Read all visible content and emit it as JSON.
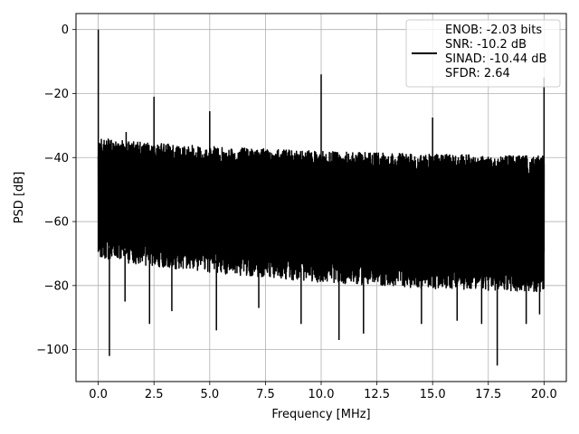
{
  "chart_data": {
    "type": "line",
    "xlabel": "Frequency [MHz]",
    "ylabel": "PSD [dB]",
    "xlim": [
      -1.0,
      21.0
    ],
    "ylim": [
      -110,
      5
    ],
    "x_ticks": [
      0.0,
      2.5,
      5.0,
      7.5,
      10.0,
      12.5,
      15.0,
      17.5,
      20.0
    ],
    "x_tick_labels": [
      "0.0",
      "2.5",
      "5.0",
      "7.5",
      "10.0",
      "12.5",
      "15.0",
      "17.5",
      "20.0"
    ],
    "y_ticks": [
      0,
      -20,
      -40,
      -60,
      -80,
      -100
    ],
    "y_tick_labels": [
      "0",
      "−20",
      "−40",
      "−60",
      "−80",
      "−100"
    ],
    "grid": true,
    "legend_location": "top-right",
    "legend_lines": [
      "ENOB: -2.03 bits",
      "SNR: -10.2 dB",
      "SINAD: -10.44 dB",
      "SFDR: 2.64"
    ],
    "line_color": "#000000",
    "series": [
      {
        "noise_band": {
          "x_range": [
            0.0,
            20.0
          ],
          "upper_envelope": [
            [
              0.1,
              -34
            ],
            [
              2.5,
              -35.5
            ],
            [
              5.0,
              -36.5
            ],
            [
              10.0,
              -38
            ],
            [
              15.0,
              -39
            ],
            [
              20.0,
              -39.5
            ]
          ],
          "lower_envelope": [
            [
              0.1,
              -72
            ],
            [
              5.0,
              -76
            ],
            [
              10.0,
              -79
            ],
            [
              15.0,
              -81
            ],
            [
              20.0,
              -82
            ]
          ],
          "deep_dips": [
            [
              0.5,
              -102
            ],
            [
              1.2,
              -85
            ],
            [
              2.3,
              -92
            ],
            [
              3.3,
              -88
            ],
            [
              5.3,
              -94
            ],
            [
              7.2,
              -87
            ],
            [
              9.1,
              -92
            ],
            [
              10.8,
              -97
            ],
            [
              11.9,
              -95
            ],
            [
              14.5,
              -92
            ],
            [
              16.1,
              -91
            ],
            [
              17.2,
              -92
            ],
            [
              17.9,
              -105
            ],
            [
              19.2,
              -92
            ],
            [
              19.8,
              -89
            ]
          ]
        },
        "spikes": [
          {
            "x": 0.0,
            "y": 0
          },
          {
            "x": 1.25,
            "y": -32
          },
          {
            "x": 2.5,
            "y": -21
          },
          {
            "x": 5.0,
            "y": -25.5
          },
          {
            "x": 10.0,
            "y": -14
          },
          {
            "x": 15.0,
            "y": -27.5
          },
          {
            "x": 20.0,
            "y": -15
          }
        ]
      }
    ]
  }
}
